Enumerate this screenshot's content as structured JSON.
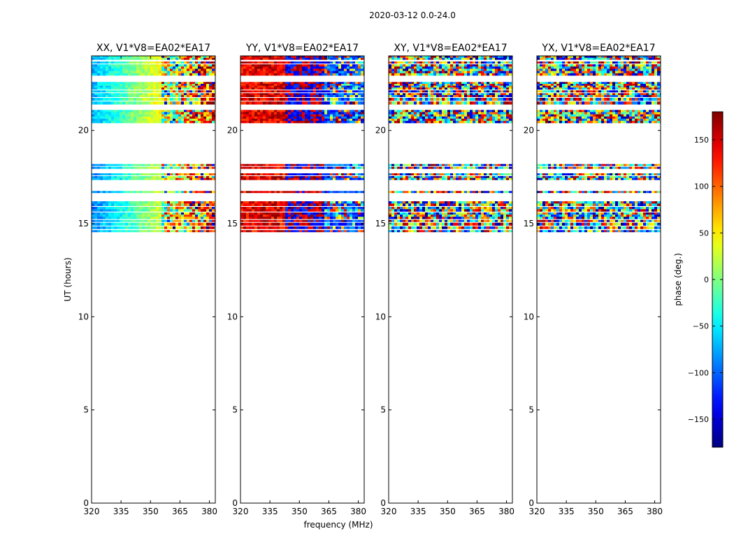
{
  "chart_data": {
    "type": "heatmap",
    "suptitle": "2020-03-12 0.0-24.0",
    "xlabel": "frequency (MHz)",
    "ylabel": "UT (hours)",
    "xlim": [
      320,
      383
    ],
    "ylim": [
      0,
      24
    ],
    "xticks": [
      320,
      335,
      350,
      365,
      380
    ],
    "yticks": [
      0,
      5,
      10,
      15,
      20
    ],
    "panels": [
      {
        "title": "XX, V1*V8=EA02*EA17",
        "pattern": "smooth-gradient"
      },
      {
        "title": "YY, V1*V8=EA02*EA17",
        "pattern": "red-to-blue"
      },
      {
        "title": "XY, V1*V8=EA02*EA17",
        "pattern": "noisy"
      },
      {
        "title": "YX, V1*V8=EA02*EA17",
        "pattern": "noisy"
      }
    ],
    "data_bands_ut": [
      [
        14.55,
        14.65
      ],
      [
        14.72,
        14.85
      ],
      [
        14.9,
        15.05
      ],
      [
        15.1,
        15.2
      ],
      [
        15.25,
        15.6
      ],
      [
        15.65,
        15.9
      ],
      [
        15.95,
        16.2
      ],
      [
        16.65,
        16.75
      ],
      [
        17.35,
        17.55
      ],
      [
        17.6,
        17.7
      ],
      [
        17.95,
        18.05
      ],
      [
        18.1,
        18.2
      ],
      [
        20.4,
        21.1
      ],
      [
        21.4,
        21.55
      ],
      [
        21.6,
        21.75
      ],
      [
        21.8,
        22.0
      ],
      [
        22.05,
        22.15
      ],
      [
        22.2,
        22.6
      ],
      [
        22.95,
        23.55
      ],
      [
        23.6,
        23.7
      ],
      [
        23.8,
        24.0
      ]
    ],
    "colorbar": {
      "label": "phase (deg.)",
      "range": [
        -180,
        180
      ],
      "ticks": [
        -150,
        -100,
        -50,
        0,
        50,
        100,
        150
      ],
      "colormap": "jet"
    }
  }
}
